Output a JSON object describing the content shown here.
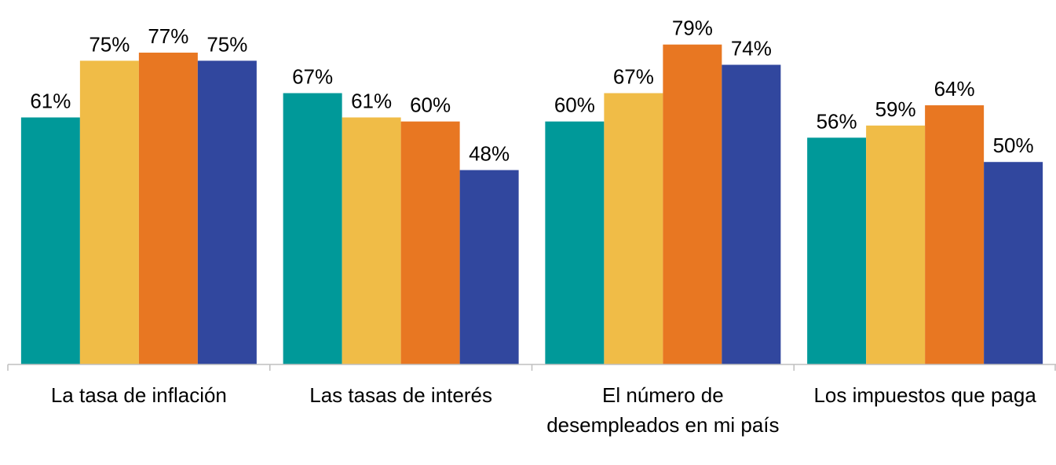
{
  "chart_data": {
    "type": "bar",
    "categories": [
      "La tasa de inflación",
      "Las tasas de interés",
      "El número de desempleados en mi país",
      "Los impuestos que paga"
    ],
    "series": [
      {
        "color": "#009999",
        "values": [
          61,
          67,
          60,
          56
        ],
        "value_labels": [
          "61%",
          "67%",
          "60%",
          "56%"
        ]
      },
      {
        "color": "#f0bc47",
        "values": [
          75,
          61,
          67,
          59
        ],
        "value_labels": [
          "75%",
          "61%",
          "67%",
          "59%"
        ]
      },
      {
        "color": "#e87722",
        "values": [
          77,
          60,
          79,
          64
        ],
        "value_labels": [
          "77%",
          "60%",
          "79%",
          "64%"
        ]
      },
      {
        "color": "#31479e",
        "values": [
          75,
          48,
          74,
          50
        ],
        "value_labels": [
          "75%",
          "48%",
          "74%",
          "50%"
        ]
      }
    ],
    "ylim": [
      0,
      90
    ]
  }
}
